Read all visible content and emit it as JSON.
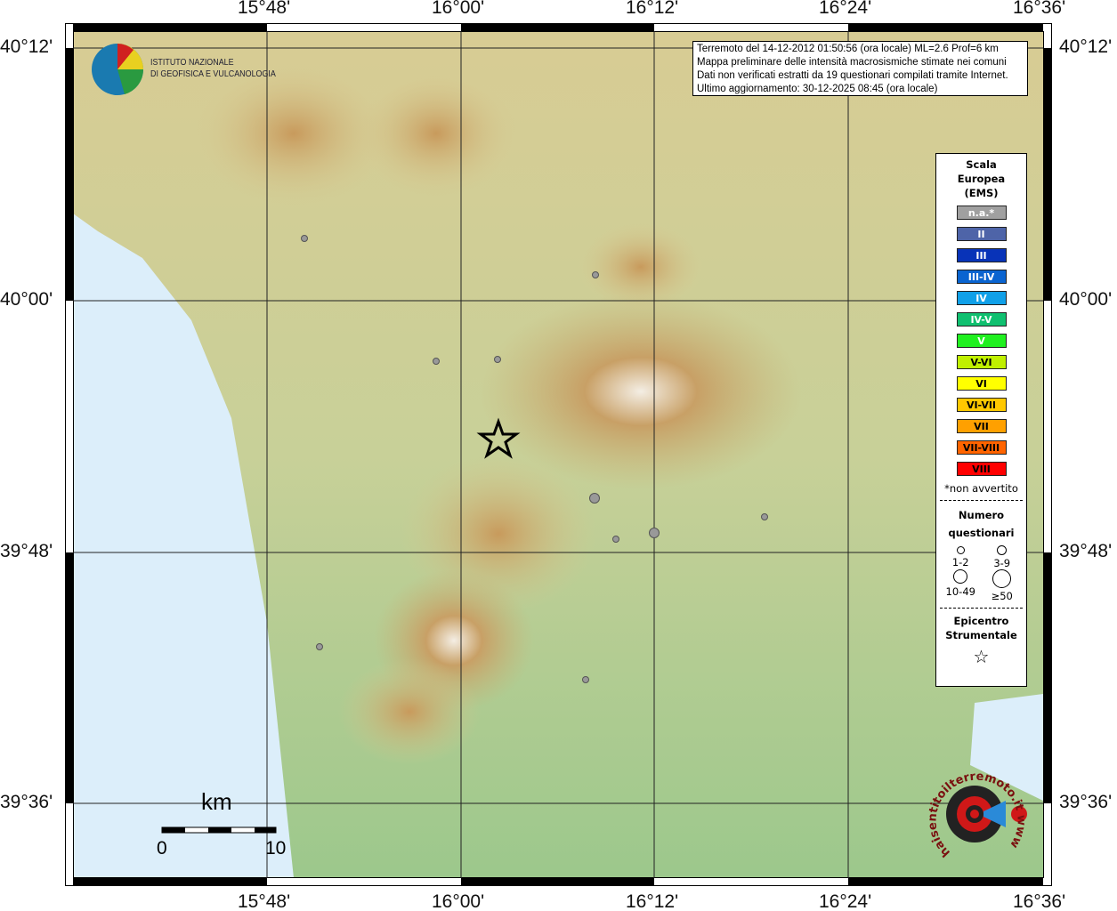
{
  "axes": {
    "lon_labels": [
      "15°48'",
      "16°00'",
      "16°12'",
      "16°24'",
      "16°36'"
    ],
    "lat_labels": [
      "40°12'",
      "40°00'",
      "39°48'",
      "39°36'"
    ]
  },
  "logo": {
    "line1": "ISTITUTO NAZIONALE",
    "line2": "DI GEOFISICA E VULCANOLOGIA"
  },
  "info": [
    "Terremoto del 14-12-2012 01:50:56 (ora locale) ML=2.6 Prof=6 km",
    "Mappa preliminare delle intensità macrosismiche stimate nei comuni",
    "Dati non verificati estratti da 19 questionari compilati tramite Internet.",
    "Ultimo aggiornamento: 30-12-2025 08:45 (ora locale)"
  ],
  "legend": {
    "title": [
      "Scala",
      "Europea",
      "(EMS)"
    ],
    "scale": [
      {
        "label": "n.a.*",
        "color": "#a0a0a0"
      },
      {
        "label": "II",
        "color": "#4e64a8"
      },
      {
        "label": "III",
        "color": "#0833b8"
      },
      {
        "label": "III-IV",
        "color": "#0a64d0"
      },
      {
        "label": "IV",
        "color": "#10a0e8"
      },
      {
        "label": "IV-V",
        "color": "#10c070"
      },
      {
        "label": "V",
        "color": "#20f020"
      },
      {
        "label": "V-VI",
        "color": "#c0f000"
      },
      {
        "label": "VI",
        "color": "#ffff00"
      },
      {
        "label": "VI-VII",
        "color": "#ffc800"
      },
      {
        "label": "VII",
        "color": "#ffa000"
      },
      {
        "label": "VII-VIII",
        "color": "#ff6400"
      },
      {
        "label": "VIII",
        "color": "#ff0000"
      }
    ],
    "note": "*non avvertito",
    "count_title": [
      "Numero",
      "questionari"
    ],
    "counts": [
      "1-2",
      "3-9",
      "10-49",
      "≥50"
    ],
    "epi_title": [
      "Epicentro",
      "Strumentale"
    ]
  },
  "scalebar": {
    "unit": "km",
    "min": "0",
    "max": "10"
  },
  "watermark": "haisentitoilterremoto.it www",
  "points_color": "#999999"
}
